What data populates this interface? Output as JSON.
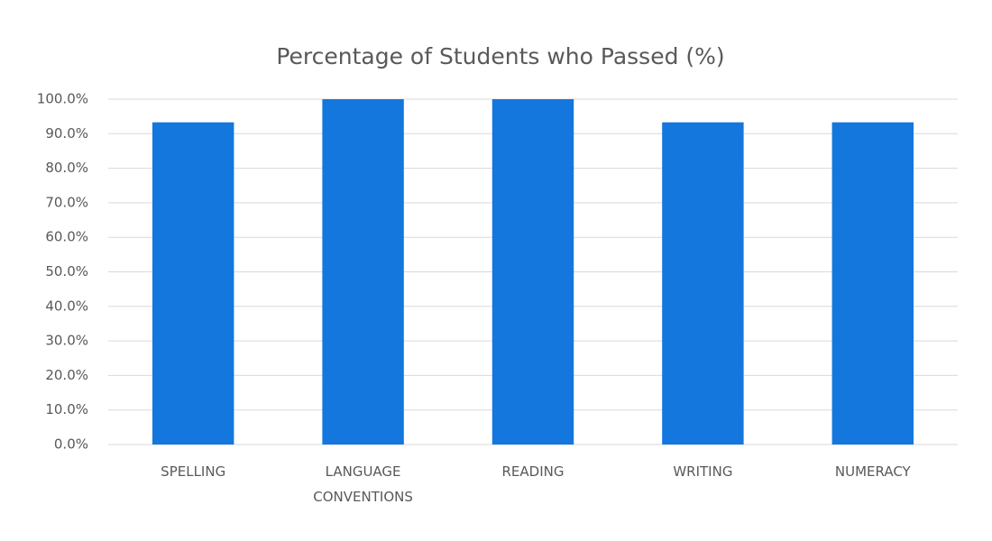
{
  "chart_data": {
    "type": "bar",
    "title": "Percentage of Students who Passed (%)",
    "categories": [
      "SPELLING",
      "LANGUAGE CONVENTIONS",
      "READING",
      "WRITING",
      "NUMERACY"
    ],
    "values": [
      93.3,
      100,
      100,
      93.3,
      93.3
    ],
    "color": "#1477dd",
    "ylim": [
      0,
      100
    ],
    "yticks": [
      {
        "value": 0,
        "label": "0.0%"
      },
      {
        "value": 10,
        "label": "10.0%"
      },
      {
        "value": 20,
        "label": "20.0%"
      },
      {
        "value": 30,
        "label": "30.0%"
      },
      {
        "value": 40,
        "label": "40.0%"
      },
      {
        "value": 50,
        "label": "50.0%"
      },
      {
        "value": 60,
        "label": "60.0%"
      },
      {
        "value": 70,
        "label": "70.0%"
      },
      {
        "value": 80,
        "label": "80.0%"
      },
      {
        "value": 90,
        "label": "90.0%"
      },
      {
        "value": 100,
        "label": "100.0%"
      }
    ],
    "grid": true
  }
}
